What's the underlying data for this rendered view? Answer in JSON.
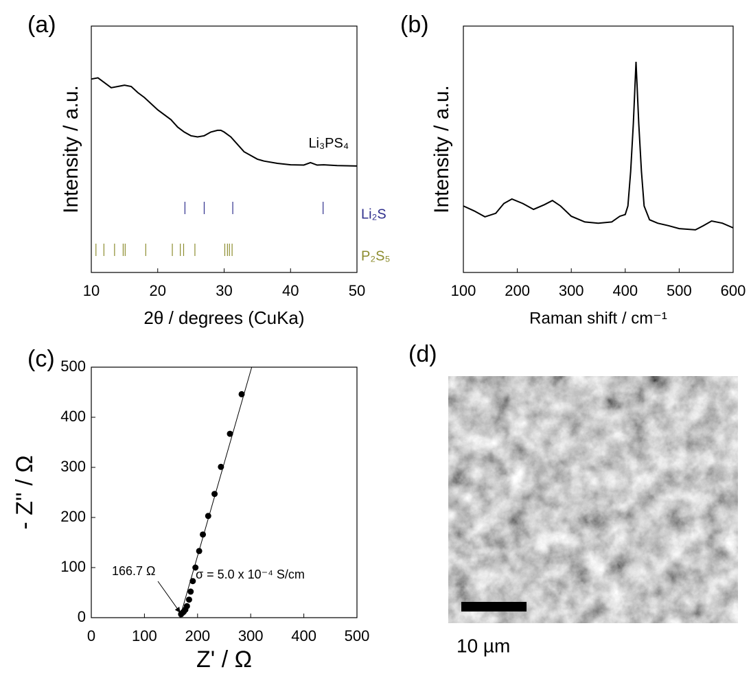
{
  "chart_data": [
    {
      "type": "line",
      "panel": "(a)",
      "x_label": "2θ / degrees (CuKa)",
      "y_label": "Intensity / a.u.",
      "xlim": [
        10,
        50
      ],
      "xticks": [
        10,
        20,
        30,
        40,
        50
      ],
      "ylim": [
        0,
        100
      ],
      "series": [
        {
          "name": "Li₃PS₄",
          "color": "#000000",
          "x": [
            10,
            11,
            12,
            13,
            14,
            15,
            16,
            17,
            18,
            20,
            22,
            23,
            24,
            25,
            26,
            27,
            28,
            29,
            29.5,
            30,
            31,
            32,
            33,
            34,
            35,
            36,
            38,
            40,
            42,
            43,
            44,
            45,
            47,
            50
          ],
          "values": [
            78.5,
            79,
            77,
            75,
            75.5,
            76,
            75.5,
            73,
            71,
            66,
            62,
            59,
            57,
            55.5,
            55,
            55.5,
            57,
            57.7,
            57.7,
            57,
            55,
            52,
            49,
            47.5,
            46,
            45.2,
            44.3,
            43.7,
            43.6,
            44.6,
            43.6,
            43.7,
            43.4,
            43.2
          ]
        }
      ],
      "reference_lines": [
        {
          "name": "Li₂S",
          "color": "#2e2e8c",
          "positions": [
            24.1,
            27.0,
            31.3,
            44.9
          ]
        },
        {
          "name": "P₂S₅",
          "color": "#8c8c2e",
          "positions": [
            10.7,
            11.9,
            13.5,
            14.8,
            15.1,
            18.2,
            22.2,
            23.4,
            23.9,
            25.6,
            30.1,
            30.5,
            30.8,
            31.2
          ]
        }
      ]
    },
    {
      "type": "line",
      "panel": "(b)",
      "x_label": "Raman shift / cm⁻¹",
      "y_label": "Intensity / a.u.",
      "xlim": [
        100,
        600
      ],
      "xticks": [
        100,
        200,
        300,
        400,
        500,
        600
      ],
      "ylim": [
        0,
        100
      ],
      "series": [
        {
          "color": "#000000",
          "x": [
            100,
            120,
            140,
            160,
            175,
            190,
            210,
            230,
            250,
            265,
            280,
            300,
            325,
            350,
            375,
            390,
            400,
            405,
            410,
            415,
            420,
            425,
            430,
            435,
            445,
            460,
            480,
            500,
            530,
            545,
            560,
            580,
            600
          ],
          "values": [
            27,
            25,
            22.6,
            24,
            28,
            29.8,
            28,
            25.6,
            27.5,
            29.2,
            27,
            22.8,
            20.5,
            20,
            20.5,
            22.8,
            23.5,
            27,
            41,
            60.4,
            85.5,
            60.4,
            41,
            27,
            21.4,
            20,
            19,
            17.8,
            17.3,
            19,
            20.9,
            20,
            18.1
          ]
        }
      ]
    },
    {
      "type": "scatter",
      "panel": "(c)",
      "x_label": "Z' / Ω",
      "y_label": "- Z'' / Ω",
      "xlim": [
        0,
        500
      ],
      "xticks": [
        0,
        100,
        200,
        300,
        400,
        500
      ],
      "ylim": [
        0,
        500
      ],
      "yticks": [
        0,
        100,
        200,
        300,
        400,
        500
      ],
      "series": [
        {
          "mode": "line",
          "color": "#000000",
          "x": [
            166.7,
            302
          ],
          "values": [
            0,
            500
          ]
        },
        {
          "mode": "markers",
          "color": "#000000",
          "x": [
            169,
            172,
            174,
            177,
            180,
            184,
            187,
            191,
            196,
            203,
            210,
            220,
            232,
            244,
            261,
            283
          ],
          "values": [
            7,
            10,
            12,
            16,
            23,
            36,
            52,
            73,
            100,
            133,
            166,
            203,
            247,
            301,
            367,
            446
          ]
        }
      ],
      "annotations": [
        "166.7 Ω",
        "σ = 5.0 x 10⁻⁴ S/cm"
      ]
    }
  ],
  "image_panel": {
    "panel": "(d)",
    "scale_bar_label": "10 µm"
  }
}
